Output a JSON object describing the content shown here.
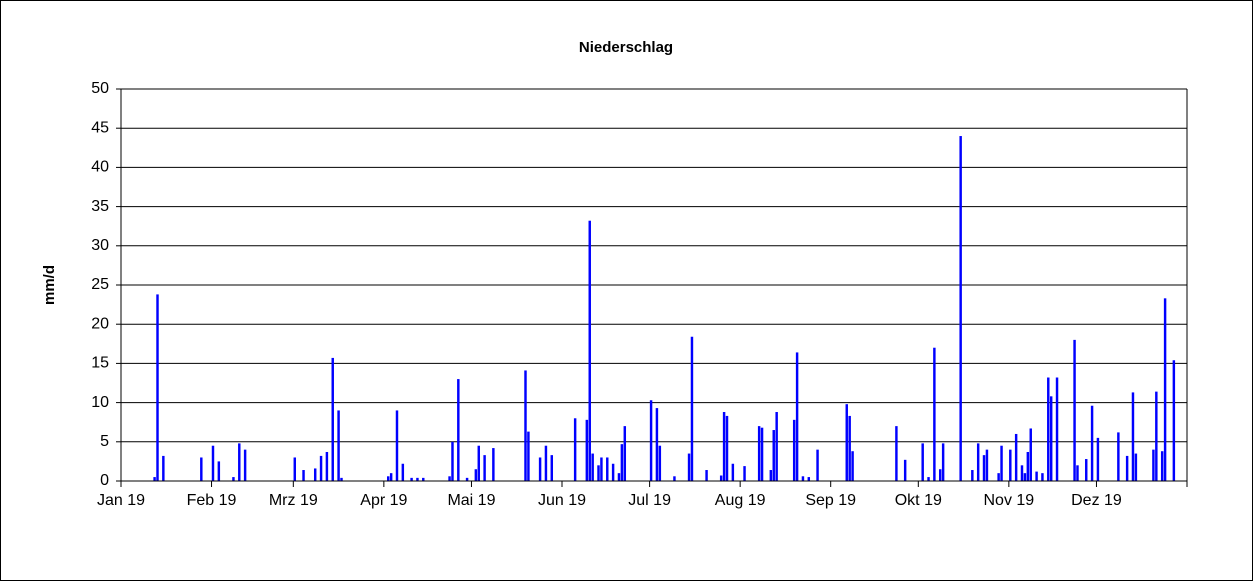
{
  "chart_data": {
    "type": "bar",
    "title": "Niederschlag",
    "y_label": "mm/d",
    "color": "#0000ff",
    "grid": true,
    "ylim": [
      0,
      50
    ],
    "yticks": [
      0,
      5,
      10,
      15,
      20,
      25,
      30,
      35,
      40,
      45,
      50
    ],
    "categories": [
      "Jan 19",
      null,
      null,
      null,
      null,
      null,
      null,
      null,
      null,
      null,
      null,
      null,
      null,
      null,
      null,
      null,
      null,
      null,
      null,
      null,
      null,
      null,
      null,
      null,
      null,
      null,
      null,
      null,
      null,
      null,
      null,
      "Feb 19",
      null,
      null,
      null,
      null,
      null,
      null,
      null,
      null,
      null,
      null,
      null,
      null,
      null,
      null,
      null,
      null,
      null,
      null,
      null,
      null,
      null,
      null,
      null,
      null,
      null,
      null,
      null,
      "Mrz 19",
      null,
      null,
      null,
      null,
      null,
      null,
      null,
      null,
      null,
      null,
      null,
      null,
      null,
      null,
      null,
      null,
      null,
      null,
      null,
      null,
      null,
      null,
      null,
      null,
      null,
      null,
      null,
      null,
      null,
      null,
      "Apr 19",
      null,
      null,
      null,
      null,
      null,
      null,
      null,
      null,
      null,
      null,
      null,
      null,
      null,
      null,
      null,
      null,
      null,
      null,
      null,
      null,
      null,
      null,
      null,
      null,
      null,
      null,
      null,
      null,
      null,
      "Mai 19",
      null,
      null,
      null,
      null,
      null,
      null,
      null,
      null,
      null,
      null,
      null,
      null,
      null,
      null,
      null,
      null,
      null,
      null,
      null,
      null,
      null,
      null,
      null,
      null,
      null,
      null,
      null,
      null,
      null,
      null,
      "Jun 19",
      null,
      null,
      null,
      null,
      null,
      null,
      null,
      null,
      null,
      null,
      null,
      null,
      null,
      null,
      null,
      null,
      null,
      null,
      null,
      null,
      null,
      null,
      null,
      null,
      null,
      null,
      null,
      null,
      null,
      "Jul 19",
      null,
      null,
      null,
      null,
      null,
      null,
      null,
      null,
      null,
      null,
      null,
      null,
      null,
      null,
      null,
      null,
      null,
      null,
      null,
      null,
      null,
      null,
      null,
      null,
      null,
      null,
      null,
      null,
      null,
      null,
      "Aug 19",
      null,
      null,
      null,
      null,
      null,
      null,
      null,
      null,
      null,
      null,
      null,
      null,
      null,
      null,
      null,
      null,
      null,
      null,
      null,
      null,
      null,
      null,
      null,
      null,
      null,
      null,
      null,
      null,
      null,
      null,
      "Sep 19",
      null,
      null,
      null,
      null,
      null,
      null,
      null,
      null,
      null,
      null,
      null,
      null,
      null,
      null,
      null,
      null,
      null,
      null,
      null,
      null,
      null,
      null,
      null,
      null,
      null,
      null,
      null,
      null,
      null,
      "Okt 19",
      null,
      null,
      null,
      null,
      null,
      null,
      null,
      null,
      null,
      null,
      null,
      null,
      null,
      null,
      null,
      null,
      null,
      null,
      null,
      null,
      null,
      null,
      null,
      null,
      null,
      null,
      null,
      null,
      null,
      null,
      "Nov 19",
      null,
      null,
      null,
      null,
      null,
      null,
      null,
      null,
      null,
      null,
      null,
      null,
      null,
      null,
      null,
      null,
      null,
      null,
      null,
      null,
      null,
      null,
      null,
      null,
      null,
      null,
      null,
      null,
      null,
      "Dez 19",
      null,
      null,
      null,
      null,
      null,
      null,
      null,
      null,
      null,
      null,
      null,
      null,
      null,
      null,
      null,
      null,
      null,
      null,
      null,
      null,
      null,
      null,
      null,
      null,
      null,
      null,
      null,
      null,
      null,
      null
    ],
    "values": [
      0,
      0,
      0,
      0,
      0,
      0,
      0,
      0,
      0,
      0,
      0,
      0.5,
      23.8,
      0,
      3.2,
      0,
      0,
      0,
      0,
      0,
      0,
      0,
      0,
      0,
      0,
      0,
      0,
      3,
      0,
      0,
      0,
      4.5,
      0,
      2.5,
      0,
      0,
      0,
      0,
      0.5,
      0,
      4.8,
      0,
      4,
      0,
      0,
      0,
      0,
      0,
      0,
      0,
      0,
      0,
      0,
      0,
      0,
      0,
      0,
      0,
      0,
      3,
      0,
      0,
      1.4,
      0,
      0,
      0,
      1.6,
      0,
      3.2,
      0,
      3.7,
      0,
      15.7,
      0,
      9,
      0.4,
      0,
      0,
      0,
      0,
      0,
      0,
      0,
      0,
      0,
      0,
      0,
      0,
      0,
      0,
      0,
      0.6,
      1,
      0,
      9,
      0,
      2.2,
      0,
      0,
      0.4,
      0,
      0.4,
      0,
      0.4,
      0,
      0,
      0,
      0,
      0,
      0,
      0,
      0,
      0.6,
      5,
      0,
      13,
      0,
      0,
      0.4,
      0,
      0,
      1.5,
      4.5,
      0,
      3.3,
      0,
      0,
      4.2,
      0,
      0,
      0,
      0,
      0,
      0,
      0,
      0,
      0,
      0,
      14.1,
      6.3,
      0,
      0,
      0,
      3,
      0,
      4.5,
      0,
      3.3,
      0,
      0,
      0,
      0,
      0,
      0,
      0,
      8,
      0,
      0,
      0,
      7.8,
      33.2,
      3.5,
      0,
      2,
      3,
      0,
      3,
      0,
      2.2,
      0,
      1,
      4.7,
      7,
      0,
      0,
      0,
      0,
      0,
      0,
      0,
      0,
      10.3,
      0,
      9.3,
      4.5,
      0,
      0,
      0,
      0,
      0.6,
      0,
      0,
      0,
      0,
      3.5,
      18.4,
      0,
      0,
      0,
      0,
      1.4,
      0,
      0,
      0,
      0,
      0.7,
      8.8,
      8.3,
      0,
      2.2,
      0,
      0,
      0,
      1.9,
      0,
      0,
      0,
      0,
      7,
      6.8,
      0,
      0,
      1.4,
      6.5,
      8.8,
      0,
      0,
      0,
      0,
      0,
      7.8,
      16.4,
      0,
      0.6,
      0,
      0.5,
      0,
      0,
      4,
      0,
      0,
      0,
      0,
      0,
      0,
      0,
      0,
      0,
      9.8,
      8.3,
      3.8,
      0,
      0,
      0,
      0,
      0,
      0,
      0,
      0,
      0,
      0,
      0,
      0,
      0,
      0,
      7,
      0,
      0,
      2.7,
      0,
      0,
      0,
      0,
      0,
      4.8,
      0,
      0.5,
      0,
      17,
      0,
      1.5,
      4.8,
      0,
      0,
      0,
      0,
      0,
      44,
      0,
      0,
      0,
      1.4,
      0,
      4.8,
      0,
      3.3,
      4,
      0,
      0,
      0,
      1,
      4.5,
      0,
      0,
      4,
      0,
      6,
      0,
      2,
      1,
      3.7,
      6.7,
      0,
      1.2,
      0,
      1,
      0,
      13.2,
      10.8,
      0,
      13.2,
      0,
      0,
      0,
      0,
      0,
      18,
      2,
      0,
      0,
      2.8,
      0,
      9.6,
      0,
      5.5,
      0,
      0,
      0,
      0,
      0,
      0,
      6.2,
      0,
      0,
      3.2,
      0,
      11.3,
      3.5,
      0,
      0,
      0,
      0,
      0,
      4,
      11.4,
      0,
      3.8,
      23.3,
      0,
      0,
      15.4,
      0,
      0,
      0,
      0
    ]
  }
}
